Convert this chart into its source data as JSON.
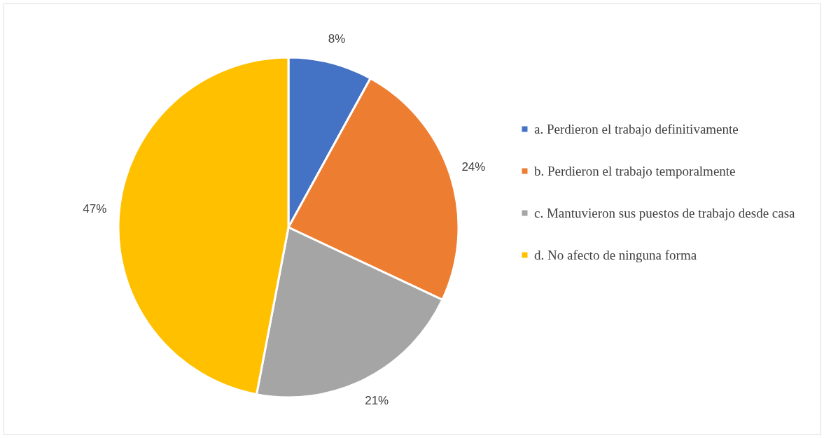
{
  "chart_data": {
    "type": "pie",
    "categories": [
      "a. Perdieron el trabajo definitivamente",
      "b. Perdieron el trabajo temporalmente",
      "c. Mantuvieron sus puestos de trabajo desde casa",
      "d. No afecto de ninguna forma"
    ],
    "values": [
      8,
      24,
      21,
      47
    ],
    "colors": [
      "#4472c4",
      "#ed7d31",
      "#a5a5a5",
      "#ffc000"
    ],
    "value_labels": [
      "8%",
      "24%",
      "21%",
      "47%"
    ],
    "legend": "right"
  }
}
